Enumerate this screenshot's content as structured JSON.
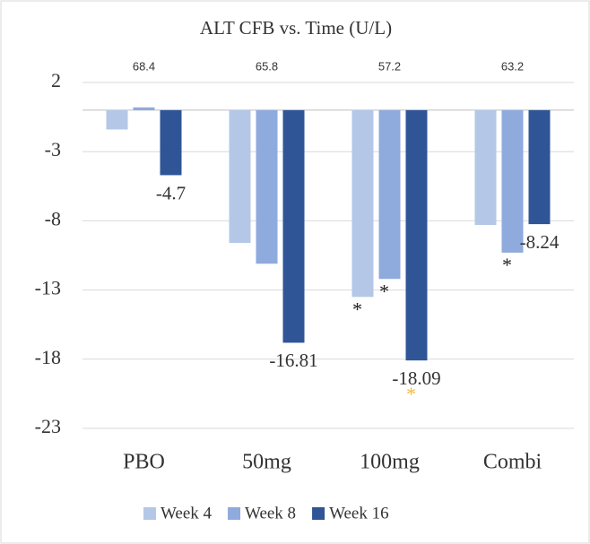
{
  "chart_data": {
    "type": "bar",
    "title": "ALT CFB vs. Time (U/L)",
    "categories": [
      "PBO",
      "50mg",
      "100mg",
      "Combi"
    ],
    "baseline_labels": [
      68.4,
      65.8,
      57.2,
      63.2
    ],
    "series": [
      {
        "name": "Week 4",
        "color": "#b4c7e7",
        "values": [
          -1.4,
          -9.6,
          -13.5,
          -8.3
        ]
      },
      {
        "name": "Week 8",
        "color": "#8faadc",
        "values": [
          0.2,
          -11.1,
          -12.2,
          -10.3
        ]
      },
      {
        "name": "Week 16",
        "color": "#2f5597",
        "values": [
          -4.7,
          -16.81,
          -18.09,
          -8.24
        ],
        "value_labels": [
          "-4.7",
          "-16.81",
          "-18.09",
          "-8.24"
        ]
      }
    ],
    "ylim": [
      -23,
      2
    ],
    "yticks": [
      2,
      -3,
      -8,
      -13,
      -18,
      -23
    ],
    "grid": true,
    "legend": "bottom",
    "asterisks": [
      {
        "text": "*",
        "category": "100mg",
        "series": "Week 4",
        "color": "#222222"
      },
      {
        "text": "*",
        "category": "100mg",
        "series": "Week 8",
        "color": "#222222"
      },
      {
        "text": "*",
        "category": "Combi",
        "series": "Week 8",
        "color": "#222222"
      },
      {
        "text": "*",
        "category": "100mg",
        "series": "Week 16",
        "color": "#f4b942"
      }
    ]
  }
}
